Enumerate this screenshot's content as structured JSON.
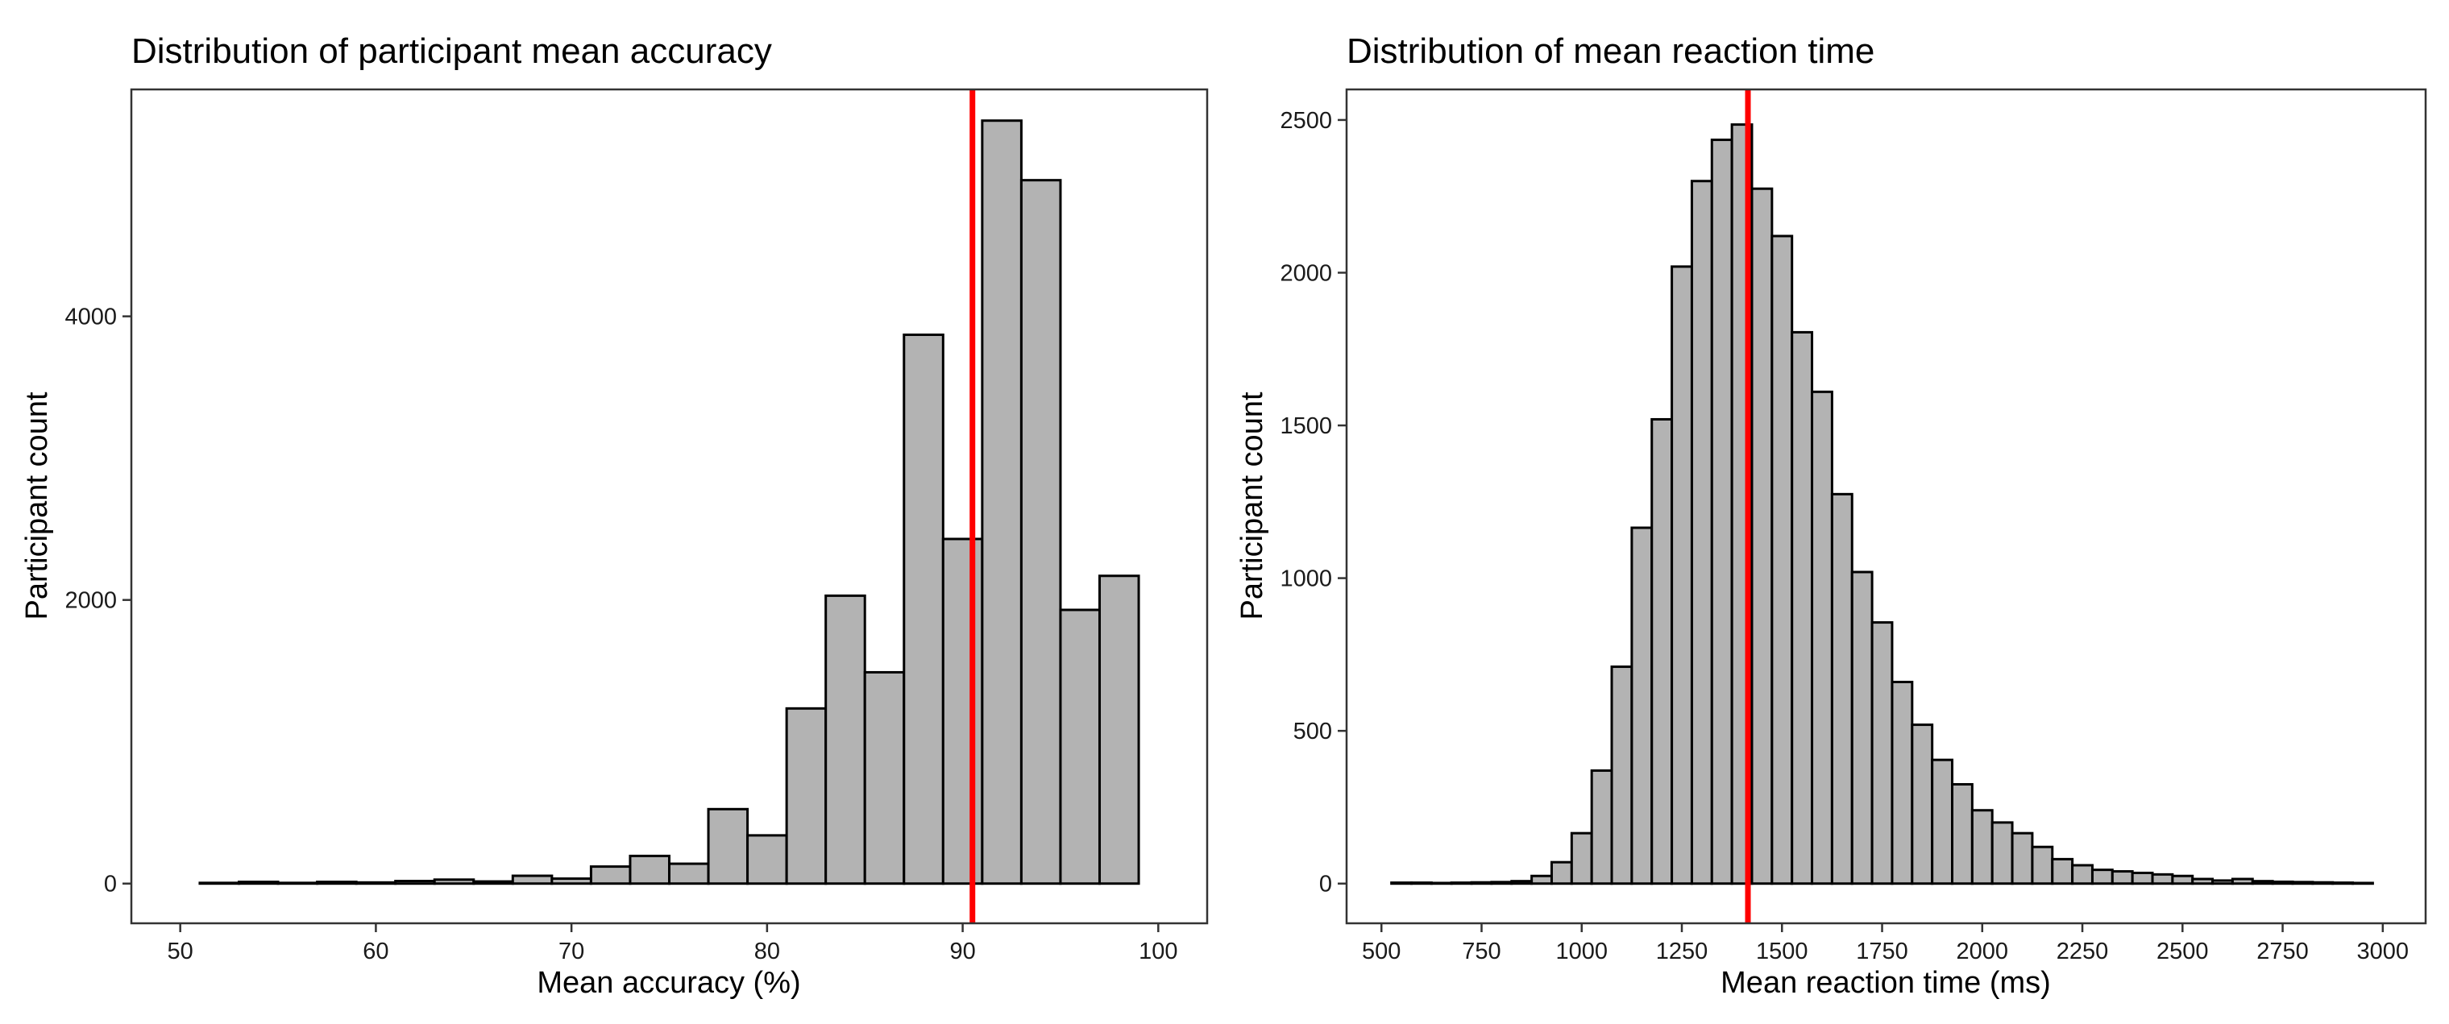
{
  "chart_data": [
    {
      "type": "bar",
      "title": "Distribution of participant mean accuracy",
      "xlabel": "Mean accuracy (%)",
      "ylabel": "Participant count",
      "xlim": [
        47.5,
        102.5
      ],
      "ylim": [
        -280,
        5600
      ],
      "x_ticks": [
        50,
        60,
        70,
        80,
        90,
        100
      ],
      "y_ticks": [
        0,
        2000,
        4000
      ],
      "bin_start": 51,
      "bin_width": 2,
      "values": [
        5,
        12,
        5,
        12,
        8,
        18,
        28,
        15,
        55,
        35,
        120,
        195,
        140,
        525,
        340,
        1235,
        2030,
        1490,
        3870,
        2430,
        5380,
        4960,
        1930,
        2170
      ],
      "marker_line": {
        "x": 90.5,
        "color": "#ff0000"
      }
    },
    {
      "type": "bar",
      "title": "Distribution of mean reaction time",
      "xlabel": "Mean reaction time (ms)",
      "ylabel": "Participant count",
      "xlim": [
        413,
        3107
      ],
      "ylim": [
        -130,
        2600
      ],
      "x_ticks": [
        500,
        750,
        1000,
        1250,
        1500,
        1750,
        2000,
        2250,
        2500,
        2750,
        3000
      ],
      "y_ticks": [
        0,
        500,
        1000,
        1500,
        2000,
        2500
      ],
      "bin_start": 525,
      "bin_width": 50,
      "values": [
        3,
        3,
        2,
        3,
        4,
        5,
        8,
        25,
        70,
        165,
        370,
        710,
        1165,
        1520,
        2020,
        2300,
        2435,
        2485,
        2275,
        2120,
        1805,
        1610,
        1275,
        1020,
        855,
        660,
        520,
        405,
        325,
        240,
        200,
        165,
        120,
        80,
        60,
        45,
        40,
        35,
        30,
        25,
        15,
        10,
        15,
        8,
        6,
        5,
        4,
        3,
        2
      ],
      "marker_line": {
        "x": 1415,
        "color": "#ff0000"
      }
    }
  ]
}
